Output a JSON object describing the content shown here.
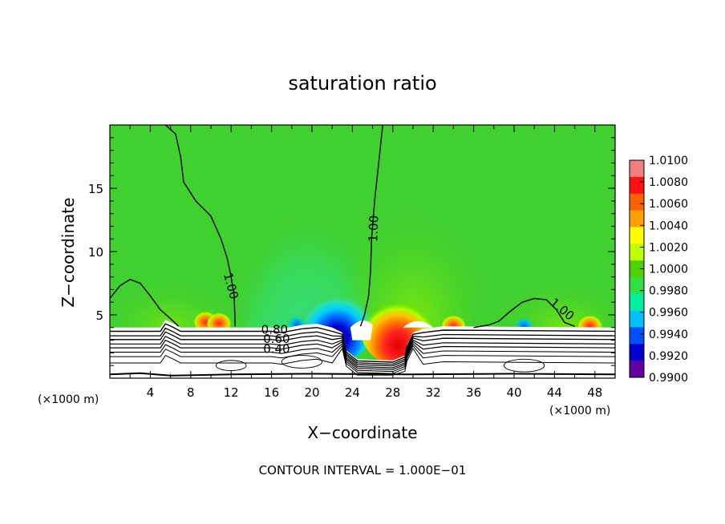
{
  "chart_data": {
    "type": "heatmap",
    "title": "saturation ratio",
    "xlabel": "X−coordinate",
    "ylabel": "Z−coordinate",
    "x_unit": "(×1000 m)",
    "z_unit": "(×1000 m)",
    "xlim": [
      0,
      50
    ],
    "ylim": [
      0,
      20
    ],
    "x_ticks": [
      "4",
      "8",
      "12",
      "16",
      "20",
      "24",
      "28",
      "32",
      "36",
      "40",
      "44",
      "48"
    ],
    "y_ticks": [
      "5",
      "10",
      "15"
    ],
    "colorbar": {
      "range": [
        0.99,
        1.01
      ],
      "labels": [
        "1.0100",
        "1.0080",
        "1.0060",
        "1.0040",
        "1.0020",
        "1.0000",
        "0.9980",
        "0.9960",
        "0.9940",
        "0.9920",
        "0.9900"
      ],
      "colors": [
        "#f08080",
        "#ff1010",
        "#ff6000",
        "#ffa000",
        "#ffff00",
        "#c0ff00",
        "#50d000",
        "#30e040",
        "#00f0a0",
        "#00c0ff",
        "#0050ff",
        "#0000d0",
        "#6000a0"
      ]
    },
    "contour_labels": [
      "1.00",
      "1.00",
      "1.00",
      "0.80",
      "0.60",
      "0.40"
    ],
    "footer": "CONTOUR INTERVAL = 1.000E−01",
    "field": {
      "background_value": 1.0,
      "terrain_height_km": 4.0,
      "valley": {
        "x_from": 23,
        "x_to": 30,
        "floor_km": 1.5
      },
      "anomalies": [
        {
          "x": 22.5,
          "z": 4.5,
          "value": 0.9905,
          "label": "subsaturated (blue) core left of valley"
        },
        {
          "x": 28.5,
          "z": 4.2,
          "value": 1.0075,
          "label": "supersaturated (red) core right of valley"
        }
      ]
    }
  }
}
